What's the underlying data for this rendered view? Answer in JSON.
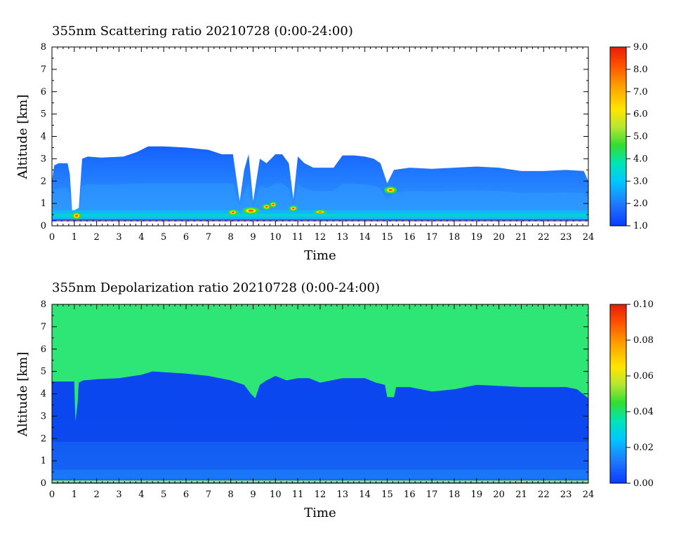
{
  "chart_data": [
    {
      "type": "heatmap",
      "title": "355nm Scattering ratio  20210728 (0:00-24:00)",
      "xlabel": "Time",
      "ylabel": "Altitude [km]",
      "xlim": [
        0,
        24
      ],
      "ylim": [
        0,
        8
      ],
      "xticks": [
        "0",
        "1",
        "2",
        "3",
        "4",
        "5",
        "6",
        "7",
        "8",
        "9",
        "10",
        "11",
        "12",
        "13",
        "14",
        "15",
        "16",
        "17",
        "18",
        "19",
        "20",
        "21",
        "22",
        "23",
        "24"
      ],
      "yticks": [
        "0",
        "1",
        "2",
        "3",
        "4",
        "5",
        "6",
        "7",
        "8"
      ],
      "colorbar": {
        "range": [
          1.0,
          9.0
        ],
        "ticks": [
          "1.0",
          "2.0",
          "3.0",
          "4.0",
          "5.0",
          "6.0",
          "7.0",
          "8.0",
          "9.0"
        ],
        "colors": [
          "#0a3cff",
          "#1e78ff",
          "#00c8ff",
          "#00e6b4",
          "#32dc32",
          "#b4e632",
          "#ffe600",
          "#ffa000",
          "#ff5000",
          "#e61e0a"
        ]
      },
      "profile_top_km": {
        "time": [
          0,
          0.1,
          0.3,
          0.7,
          0.8,
          0.9,
          1.0,
          1.2,
          1.35,
          1.6,
          2.2,
          3.2,
          3.8,
          4.3,
          5.0,
          6.0,
          7.0,
          7.6,
          8.1,
          8.4,
          8.6,
          8.8,
          9.0,
          9.3,
          9.6,
          10.0,
          10.3,
          10.6,
          10.8,
          11.0,
          11.3,
          11.7,
          12.2,
          12.6,
          13.0,
          13.5,
          14.0,
          14.4,
          14.7,
          15.0,
          15.3,
          16.0,
          17.0,
          18.0,
          19.0,
          20.0,
          21.0,
          22.0,
          23.0,
          23.8,
          24.0
        ],
        "altitude": [
          2.0,
          2.7,
          2.8,
          2.8,
          2.3,
          0.7,
          0.7,
          0.8,
          3.0,
          3.1,
          3.05,
          3.1,
          3.3,
          3.55,
          3.55,
          3.5,
          3.4,
          3.2,
          3.2,
          1.1,
          2.5,
          3.2,
          1.1,
          3.0,
          2.8,
          3.2,
          3.2,
          2.8,
          1.2,
          3.1,
          2.8,
          2.6,
          2.6,
          2.6,
          3.15,
          3.15,
          3.1,
          3.0,
          2.8,
          1.9,
          2.5,
          2.6,
          2.55,
          2.6,
          2.65,
          2.6,
          2.45,
          2.45,
          2.5,
          2.45,
          2.0
        ]
      }
    },
    {
      "type": "heatmap",
      "title": "355nm Depolarization ratio  20210728 (0:00-24:00)",
      "xlabel": "Time",
      "ylabel": "Altitude [km]",
      "xlim": [
        0,
        24
      ],
      "ylim": [
        0,
        8
      ],
      "xticks": [
        "0",
        "1",
        "2",
        "3",
        "4",
        "5",
        "6",
        "7",
        "8",
        "9",
        "10",
        "11",
        "12",
        "13",
        "14",
        "15",
        "16",
        "17",
        "18",
        "19",
        "20",
        "21",
        "22",
        "23",
        "24"
      ],
      "yticks": [
        "0",
        "1",
        "2",
        "3",
        "4",
        "5",
        "6",
        "7",
        "8"
      ],
      "colorbar": {
        "range": [
          0.0,
          0.1
        ],
        "ticks": [
          "0.00",
          "0.02",
          "0.04",
          "0.06",
          "0.08",
          "0.10"
        ],
        "colors": [
          "#0a3cff",
          "#1e78ff",
          "#00c8ff",
          "#00e6b4",
          "#32dc32",
          "#b4e632",
          "#ffe600",
          "#ffa000",
          "#ff5000",
          "#e61e0a"
        ]
      },
      "background_color": "#2ee675",
      "boundary_km": {
        "time": [
          0,
          1.0,
          1.05,
          1.15,
          1.2,
          1.3,
          1.4,
          2.0,
          3.0,
          4.0,
          4.5,
          6.0,
          7.0,
          8.0,
          8.3,
          8.6,
          8.9,
          9.1,
          9.3,
          9.6,
          10.0,
          10.5,
          11.0,
          11.5,
          12.0,
          13.0,
          14.0,
          14.5,
          14.9,
          15.0,
          15.3,
          15.4,
          16.0,
          17.0,
          18.0,
          19.0,
          20.0,
          21.0,
          22.0,
          23.0,
          23.5,
          24.0
        ],
        "altitude": [
          4.55,
          4.55,
          2.75,
          3.6,
          4.5,
          4.55,
          4.6,
          4.65,
          4.7,
          4.85,
          5.0,
          4.9,
          4.8,
          4.6,
          4.5,
          4.4,
          4.0,
          3.8,
          4.4,
          4.6,
          4.8,
          4.6,
          4.7,
          4.7,
          4.5,
          4.7,
          4.7,
          4.5,
          4.4,
          3.85,
          3.85,
          4.3,
          4.3,
          4.1,
          4.2,
          4.4,
          4.35,
          4.3,
          4.3,
          4.3,
          4.2,
          3.8
        ]
      }
    }
  ]
}
